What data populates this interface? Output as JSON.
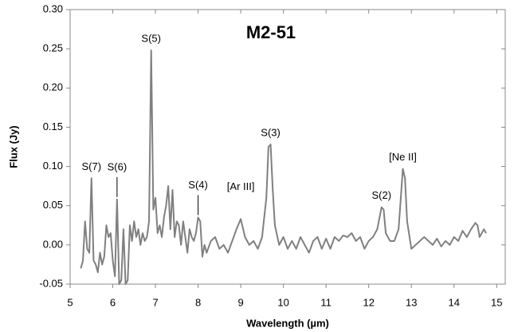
{
  "chart_data": {
    "type": "line",
    "title": "M2-51",
    "x_label": "Wavelength (µm)",
    "y_label": "Flux (Jy)",
    "xlim": [
      5,
      15.2
    ],
    "xticks": [
      5,
      6,
      7,
      8,
      9,
      10,
      11,
      12,
      13,
      14,
      15
    ],
    "ylim": [
      -0.05,
      0.3
    ],
    "yticks": [
      {
        "value": -0.05,
        "label": "-0.05"
      },
      {
        "value": 0,
        "label": "0.00"
      },
      {
        "value": 0.05,
        "label": "0.05"
      },
      {
        "value": 0.1,
        "label": "0.10"
      },
      {
        "value": 0.15,
        "label": "0.15"
      },
      {
        "value": 0.2,
        "label": "0.20"
      },
      {
        "value": 0.25,
        "label": "0.25"
      },
      {
        "value": 0.3,
        "label": "0.30"
      }
    ],
    "color": "#808080",
    "x": [
      5.25,
      5.3,
      5.35,
      5.4,
      5.45,
      5.5,
      5.55,
      5.6,
      5.65,
      5.7,
      5.75,
      5.8,
      5.85,
      5.9,
      5.95,
      6.0,
      6.05,
      6.1,
      6.15,
      6.2,
      6.25,
      6.3,
      6.35,
      6.4,
      6.45,
      6.5,
      6.55,
      6.6,
      6.65,
      6.7,
      6.75,
      6.8,
      6.85,
      6.9,
      6.95,
      7.0,
      7.05,
      7.1,
      7.15,
      7.2,
      7.25,
      7.3,
      7.35,
      7.4,
      7.45,
      7.5,
      7.55,
      7.6,
      7.65,
      7.7,
      7.75,
      7.8,
      7.85,
      7.9,
      7.95,
      8.0,
      8.05,
      8.1,
      8.15,
      8.2,
      8.3,
      8.4,
      8.5,
      8.6,
      8.7,
      8.8,
      8.9,
      9.0,
      9.1,
      9.2,
      9.3,
      9.4,
      9.5,
      9.6,
      9.65,
      9.7,
      9.75,
      9.8,
      9.9,
      10.0,
      10.1,
      10.2,
      10.3,
      10.4,
      10.5,
      10.6,
      10.7,
      10.8,
      10.9,
      11.0,
      11.1,
      11.2,
      11.3,
      11.4,
      11.5,
      11.6,
      11.7,
      11.8,
      11.9,
      12.0,
      12.1,
      12.2,
      12.3,
      12.35,
      12.4,
      12.5,
      12.6,
      12.7,
      12.8,
      12.85,
      12.9,
      13.0,
      13.1,
      13.2,
      13.3,
      13.4,
      13.5,
      13.6,
      13.7,
      13.8,
      13.9,
      14.0,
      14.1,
      14.2,
      14.3,
      14.4,
      14.5,
      14.55,
      14.6,
      14.7,
      14.75
    ],
    "values": [
      -0.03,
      -0.02,
      0.03,
      -0.005,
      -0.01,
      0.085,
      -0.02,
      -0.025,
      -0.035,
      -0.01,
      -0.025,
      -0.015,
      0.025,
      0.01,
      0.015,
      -0.02,
      -0.04,
      0.058,
      -0.05,
      -0.045,
      0.02,
      -0.05,
      -0.045,
      0.025,
      0.005,
      0.03,
      0.01,
      0.02,
      0.0,
      0.015,
      0.005,
      0.01,
      0.03,
      0.248,
      0.045,
      0.06,
      0.015,
      0.025,
      0.01,
      0.035,
      0.05,
      0.075,
      0.02,
      0.07,
      0.01,
      0.03,
      0.025,
      0.0,
      0.03,
      0.01,
      -0.01,
      0.02,
      0.01,
      0.005,
      0.015,
      0.035,
      0.03,
      -0.015,
      0.0,
      -0.01,
      0.005,
      0.01,
      -0.005,
      0.0,
      -0.01,
      0.005,
      0.02,
      0.033,
      0.01,
      0.0,
      0.005,
      -0.005,
      0.01,
      0.06,
      0.125,
      0.128,
      0.07,
      0.025,
      0.0,
      0.01,
      -0.005,
      0.005,
      -0.005,
      0.01,
      0.0,
      -0.01,
      0.005,
      0.01,
      -0.005,
      0.008,
      -0.005,
      0.01,
      0.005,
      0.012,
      0.01,
      0.015,
      0.005,
      0.01,
      -0.005,
      0.005,
      0.01,
      0.02,
      0.048,
      0.045,
      0.015,
      0.005,
      0.005,
      0.02,
      0.097,
      0.085,
      0.03,
      -0.005,
      0.0,
      0.005,
      0.01,
      0.005,
      0.0,
      0.008,
      -0.002,
      0.005,
      0.0,
      0.01,
      0.005,
      0.018,
      0.01,
      0.02,
      0.028,
      0.025,
      0.01,
      0.02,
      0.015
    ],
    "annotations": [
      {
        "text": "S(7)",
        "x": 5.5
      },
      {
        "text": "S(6)",
        "x": 6.1,
        "leader": true
      },
      {
        "text": "S(5)",
        "x": 6.9
      },
      {
        "text": "S(4)",
        "x": 8.0,
        "leader": true
      },
      {
        "text": "[Ar III]",
        "x": 9.0,
        "leader": false
      },
      {
        "text": "S(3)",
        "x": 9.7
      },
      {
        "text": "S(2)",
        "x": 12.3
      },
      {
        "text": "[Ne II]",
        "x": 12.8
      }
    ]
  }
}
